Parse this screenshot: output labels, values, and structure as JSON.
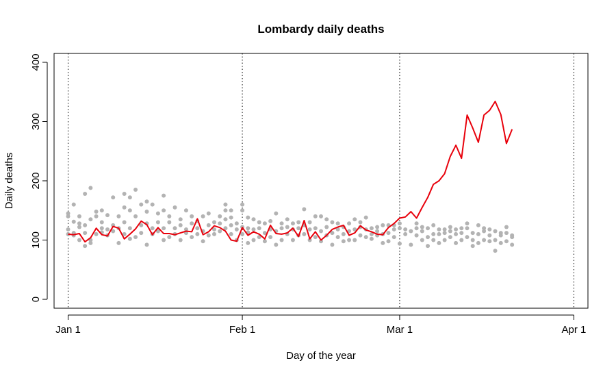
{
  "chart_data": {
    "type": "line",
    "title": "Lombardy daily deaths",
    "xlabel": "Day of the year",
    "ylabel": "Daily deaths",
    "xlim": [
      -2.5,
      92.5
    ],
    "ylim": [
      -15,
      415
    ],
    "x_ticks": [
      {
        "value": 0,
        "label": "Jan 1"
      },
      {
        "value": 31,
        "label": "Feb 1"
      },
      {
        "value": 59,
        "label": "Mar 1"
      },
      {
        "value": 90,
        "label": "Apr 1"
      }
    ],
    "y_ticks": [
      0,
      100,
      200,
      300,
      400
    ],
    "vlines": [
      0,
      31,
      59,
      90
    ],
    "grid": false,
    "colors": {
      "current_year": "#e8000b",
      "previous_years": "#b3b3b3",
      "axis": "#000000"
    },
    "series": [
      {
        "style": "line",
        "x": [
          0,
          1,
          2,
          3,
          4,
          5,
          6,
          7,
          8,
          9,
          10,
          11,
          12,
          13,
          14,
          15,
          16,
          17,
          18,
          19,
          20,
          21,
          22,
          23,
          24,
          25,
          26,
          27,
          28,
          29,
          30,
          31,
          32,
          33,
          34,
          35,
          36,
          37,
          38,
          39,
          40,
          41,
          42,
          43,
          44,
          45,
          46,
          47,
          48,
          49,
          50,
          51,
          52,
          53,
          54,
          55,
          56,
          57,
          58,
          59,
          60,
          61,
          62,
          63,
          64,
          65,
          66,
          67,
          68,
          69,
          70,
          71,
          72,
          73,
          74,
          75,
          76,
          77,
          78,
          79
        ],
        "y": [
          110,
          109,
          111,
          97,
          104,
          120,
          109,
          107,
          123,
          120,
          102,
          110,
          119,
          132,
          126,
          109,
          121,
          111,
          111,
          109,
          112,
          115,
          114,
          136,
          109,
          114,
          124,
          121,
          115,
          100,
          98,
          121,
          108,
          114,
          110,
          102,
          125,
          111,
          110,
          112,
          120,
          106,
          133,
          102,
          114,
          100,
          108,
          118,
          122,
          125,
          108,
          112,
          124,
          117,
          114,
          110,
          109,
          121,
          128,
          137,
          139,
          148,
          137,
          155,
          172,
          194,
          200,
          212,
          241,
          260,
          238,
          311,
          289,
          265,
          311,
          319,
          334,
          312,
          263,
          287
        ]
      },
      {
        "style": "points",
        "points": [
          [
            0,
            110
          ],
          [
            0,
            118
          ],
          [
            0,
            140
          ],
          [
            0,
            145
          ],
          [
            1,
            131
          ],
          [
            1,
            160
          ],
          [
            1,
            112
          ],
          [
            1,
            108
          ],
          [
            2,
            100
          ],
          [
            2,
            122
          ],
          [
            2,
            128
          ],
          [
            2,
            140
          ],
          [
            3,
            90
          ],
          [
            3,
            112
          ],
          [
            3,
            125
          ],
          [
            3,
            178
          ],
          [
            4,
            95
          ],
          [
            4,
            100
          ],
          [
            4,
            135
          ],
          [
            4,
            188
          ],
          [
            5,
            110
          ],
          [
            5,
            140
          ],
          [
            5,
            148
          ],
          [
            6,
            113
          ],
          [
            6,
            120
          ],
          [
            6,
            130
          ],
          [
            6,
            150
          ],
          [
            7,
            108
          ],
          [
            7,
            118
          ],
          [
            7,
            142
          ],
          [
            8,
            115
          ],
          [
            8,
            125
          ],
          [
            8,
            172
          ],
          [
            9,
            95
          ],
          [
            9,
            120
          ],
          [
            9,
            140
          ],
          [
            10,
            110
          ],
          [
            10,
            130
          ],
          [
            10,
            155
          ],
          [
            10,
            178
          ],
          [
            11,
            102
          ],
          [
            11,
            120
          ],
          [
            11,
            150
          ],
          [
            11,
            172
          ],
          [
            12,
            105
          ],
          [
            12,
            140
          ],
          [
            12,
            185
          ],
          [
            13,
            112
          ],
          [
            13,
            125
          ],
          [
            13,
            160
          ],
          [
            14,
            92
          ],
          [
            14,
            128
          ],
          [
            14,
            148
          ],
          [
            14,
            165
          ],
          [
            15,
            110
          ],
          [
            15,
            120
          ],
          [
            15,
            160
          ],
          [
            16,
            115
          ],
          [
            16,
            130
          ],
          [
            16,
            145
          ],
          [
            17,
            100
          ],
          [
            17,
            120
          ],
          [
            17,
            150
          ],
          [
            17,
            175
          ],
          [
            18,
            105
          ],
          [
            18,
            130
          ],
          [
            18,
            140
          ],
          [
            19,
            110
          ],
          [
            19,
            120
          ],
          [
            19,
            155
          ],
          [
            20,
            100
          ],
          [
            20,
            125
          ],
          [
            20,
            135
          ],
          [
            21,
            112
          ],
          [
            21,
            118
          ],
          [
            21,
            150
          ],
          [
            22,
            105
          ],
          [
            22,
            128
          ],
          [
            22,
            140
          ],
          [
            23,
            110
          ],
          [
            23,
            120
          ],
          [
            23,
            132
          ],
          [
            24,
            98
          ],
          [
            24,
            115
          ],
          [
            24,
            140
          ],
          [
            25,
            108
          ],
          [
            25,
            125
          ],
          [
            25,
            145
          ],
          [
            26,
            110
          ],
          [
            26,
            118
          ],
          [
            26,
            130
          ],
          [
            27,
            115
          ],
          [
            27,
            128
          ],
          [
            27,
            140
          ],
          [
            28,
            120
          ],
          [
            28,
            135
          ],
          [
            28,
            150
          ],
          [
            28,
            160
          ],
          [
            29,
            110
          ],
          [
            29,
            125
          ],
          [
            29,
            138
          ],
          [
            29,
            150
          ],
          [
            30,
            100
          ],
          [
            30,
            118
          ],
          [
            30,
            128
          ],
          [
            31,
            110
          ],
          [
            31,
            122
          ],
          [
            31,
            150
          ],
          [
            31,
            160
          ],
          [
            32,
            95
          ],
          [
            32,
            113
          ],
          [
            32,
            120
          ],
          [
            32,
            138
          ],
          [
            33,
            100
          ],
          [
            33,
            118
          ],
          [
            33,
            135
          ],
          [
            34,
            105
          ],
          [
            34,
            120
          ],
          [
            34,
            130
          ],
          [
            35,
            98
          ],
          [
            35,
            112
          ],
          [
            35,
            128
          ],
          [
            36,
            105
          ],
          [
            36,
            118
          ],
          [
            36,
            132
          ],
          [
            37,
            92
          ],
          [
            37,
            115
          ],
          [
            37,
            145
          ],
          [
            38,
            100
          ],
          [
            38,
            120
          ],
          [
            38,
            128
          ],
          [
            39,
            110
          ],
          [
            39,
            122
          ],
          [
            39,
            135
          ],
          [
            40,
            100
          ],
          [
            40,
            118
          ],
          [
            40,
            128
          ],
          [
            41,
            108
          ],
          [
            41,
            120
          ],
          [
            41,
            130
          ],
          [
            42,
            110
          ],
          [
            42,
            125
          ],
          [
            42,
            152
          ],
          [
            43,
            100
          ],
          [
            43,
            118
          ],
          [
            43,
            130
          ],
          [
            44,
            105
          ],
          [
            44,
            120
          ],
          [
            44,
            140
          ],
          [
            45,
            98
          ],
          [
            45,
            115
          ],
          [
            45,
            140
          ],
          [
            46,
            108
          ],
          [
            46,
            122
          ],
          [
            46,
            135
          ],
          [
            47,
            92
          ],
          [
            47,
            112
          ],
          [
            47,
            130
          ],
          [
            48,
            105
          ],
          [
            48,
            118
          ],
          [
            48,
            128
          ],
          [
            49,
            98
          ],
          [
            49,
            110
          ],
          [
            49,
            122
          ],
          [
            50,
            100
          ],
          [
            50,
            115
          ],
          [
            50,
            128
          ],
          [
            51,
            100
          ],
          [
            51,
            118
          ],
          [
            51,
            135
          ],
          [
            52,
            108
          ],
          [
            52,
            122
          ],
          [
            52,
            130
          ],
          [
            53,
            105
          ],
          [
            53,
            118
          ],
          [
            53,
            138
          ],
          [
            54,
            102
          ],
          [
            54,
            110
          ],
          [
            54,
            120
          ],
          [
            55,
            108
          ],
          [
            55,
            115
          ],
          [
            55,
            122
          ],
          [
            56,
            95
          ],
          [
            56,
            110
          ],
          [
            56,
            125
          ],
          [
            57,
            98
          ],
          [
            57,
            112
          ],
          [
            57,
            125
          ],
          [
            58,
            105
          ],
          [
            58,
            118
          ],
          [
            58,
            125
          ],
          [
            59,
            94
          ],
          [
            59,
            120
          ],
          [
            59,
            128
          ],
          [
            60,
            110
          ],
          [
            60,
            118
          ],
          [
            61,
            92
          ],
          [
            61,
            115
          ],
          [
            62,
            108
          ],
          [
            62,
            120
          ],
          [
            62,
            128
          ],
          [
            63,
            100
          ],
          [
            63,
            115
          ],
          [
            63,
            122
          ],
          [
            64,
            90
          ],
          [
            64,
            105
          ],
          [
            64,
            120
          ],
          [
            65,
            100
          ],
          [
            65,
            110
          ],
          [
            65,
            125
          ],
          [
            66,
            95
          ],
          [
            66,
            110
          ],
          [
            66,
            118
          ],
          [
            67,
            100
          ],
          [
            67,
            112
          ],
          [
            67,
            118
          ],
          [
            68,
            105
          ],
          [
            68,
            115
          ],
          [
            68,
            122
          ],
          [
            69,
            95
          ],
          [
            69,
            110
          ],
          [
            69,
            118
          ],
          [
            70,
            100
          ],
          [
            70,
            112
          ],
          [
            70,
            120
          ],
          [
            71,
            105
          ],
          [
            71,
            120
          ],
          [
            71,
            128
          ],
          [
            72,
            90
          ],
          [
            72,
            100
          ],
          [
            72,
            112
          ],
          [
            73,
            95
          ],
          [
            73,
            110
          ],
          [
            73,
            125
          ],
          [
            74,
            100
          ],
          [
            74,
            115
          ],
          [
            74,
            120
          ],
          [
            75,
            98
          ],
          [
            75,
            108
          ],
          [
            75,
            118
          ],
          [
            76,
            82
          ],
          [
            76,
            100
          ],
          [
            76,
            115
          ],
          [
            77,
            95
          ],
          [
            77,
            108
          ],
          [
            77,
            112
          ],
          [
            78,
            98
          ],
          [
            78,
            112
          ],
          [
            78,
            122
          ],
          [
            79,
            92
          ],
          [
            79,
            105
          ],
          [
            79,
            108
          ]
        ]
      }
    ]
  }
}
